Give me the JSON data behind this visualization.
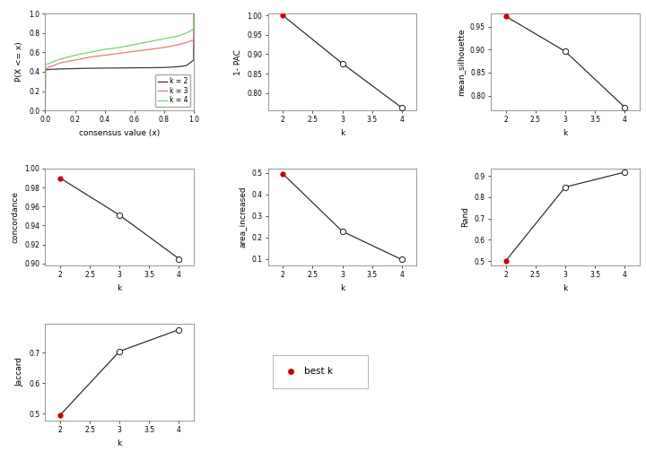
{
  "ecdf": {
    "k2": {
      "x": [
        0.0,
        0.001,
        0.05,
        0.1,
        0.2,
        0.3,
        0.4,
        0.5,
        0.6,
        0.7,
        0.8,
        0.9,
        0.95,
        0.999,
        1.0
      ],
      "y": [
        0.0,
        0.42,
        0.425,
        0.428,
        0.432,
        0.435,
        0.437,
        0.438,
        0.44,
        0.441,
        0.443,
        0.452,
        0.463,
        0.52,
        1.0
      ]
    },
    "k3": {
      "x": [
        0.0,
        0.001,
        0.05,
        0.1,
        0.2,
        0.3,
        0.4,
        0.5,
        0.6,
        0.7,
        0.8,
        0.9,
        0.95,
        0.999,
        1.0
      ],
      "y": [
        0.0,
        0.43,
        0.46,
        0.49,
        0.52,
        0.55,
        0.57,
        0.59,
        0.61,
        0.63,
        0.65,
        0.68,
        0.7,
        0.73,
        1.0
      ]
    },
    "k4": {
      "x": [
        0.0,
        0.001,
        0.05,
        0.1,
        0.2,
        0.3,
        0.4,
        0.5,
        0.6,
        0.7,
        0.8,
        0.9,
        0.95,
        0.999,
        1.0
      ],
      "y": [
        0.0,
        0.47,
        0.5,
        0.53,
        0.57,
        0.6,
        0.63,
        0.65,
        0.68,
        0.71,
        0.74,
        0.77,
        0.8,
        0.84,
        1.0
      ]
    },
    "colors": {
      "k2": "#3d3d3d",
      "k3": "#e87878",
      "k4": "#70d870"
    },
    "xlabel": "consensus value (x)",
    "ylabel": "P(X <= x)",
    "xlim": [
      0.0,
      1.0
    ],
    "ylim": [
      0.0,
      1.0
    ],
    "xticks": [
      0.0,
      0.2,
      0.4,
      0.6,
      0.8,
      1.0
    ],
    "yticks": [
      0.0,
      0.2,
      0.4,
      0.6,
      0.8,
      1.0
    ]
  },
  "pac": {
    "k": [
      2,
      3,
      4
    ],
    "y": [
      1.0,
      0.876,
      0.762
    ],
    "best_k_idx": 0,
    "ylabel": "1- PAC",
    "xlabel": "k",
    "yticks": [
      0.8,
      0.85,
      0.9,
      0.95,
      1.0
    ],
    "ylim": [
      0.755,
      1.005
    ]
  },
  "silhouette": {
    "k": [
      2,
      3,
      4
    ],
    "y": [
      0.972,
      0.896,
      0.775
    ],
    "best_k_idx": 0,
    "ylabel": "mean_silhouette",
    "xlabel": "k",
    "yticks": [
      0.8,
      0.85,
      0.9,
      0.95
    ],
    "ylim": [
      0.768,
      0.978
    ]
  },
  "concordance": {
    "k": [
      2,
      3,
      4
    ],
    "y": [
      0.99,
      0.951,
      0.905
    ],
    "best_k_idx": 0,
    "ylabel": "concordance",
    "xlabel": "k",
    "yticks": [
      0.9,
      0.92,
      0.94,
      0.96,
      0.98,
      1.0
    ],
    "ylim": [
      0.898,
      0.995
    ]
  },
  "area_increased": {
    "k": [
      2,
      3,
      4
    ],
    "y": [
      0.495,
      0.228,
      0.097
    ],
    "best_k_idx": 0,
    "ylabel": "area_increased",
    "xlabel": "k",
    "yticks": [
      0.1,
      0.2,
      0.3,
      0.4,
      0.5
    ],
    "ylim": [
      0.07,
      0.52
    ]
  },
  "rand": {
    "k": [
      2,
      3,
      4
    ],
    "y": [
      0.502,
      0.848,
      0.918
    ],
    "best_k_idx": 0,
    "ylabel": "Rand",
    "xlabel": "k",
    "yticks": [
      0.5,
      0.6,
      0.7,
      0.8,
      0.9
    ],
    "ylim": [
      0.48,
      0.935
    ]
  },
  "jaccard": {
    "k": [
      2,
      3,
      4
    ],
    "y": [
      0.495,
      0.704,
      0.775
    ],
    "best_k_idx": 0,
    "ylabel": "Jaccard",
    "xlabel": "k",
    "yticks": [
      0.5,
      0.6,
      0.7
    ],
    "ylim": [
      0.478,
      0.795
    ]
  },
  "best_k_color": "#cc0000",
  "line_color": "#1a1a1a",
  "bg_color": "#ffffff",
  "tick_fontsize": 5.5,
  "label_fontsize": 6.5,
  "legend_fontsize": 5.5
}
